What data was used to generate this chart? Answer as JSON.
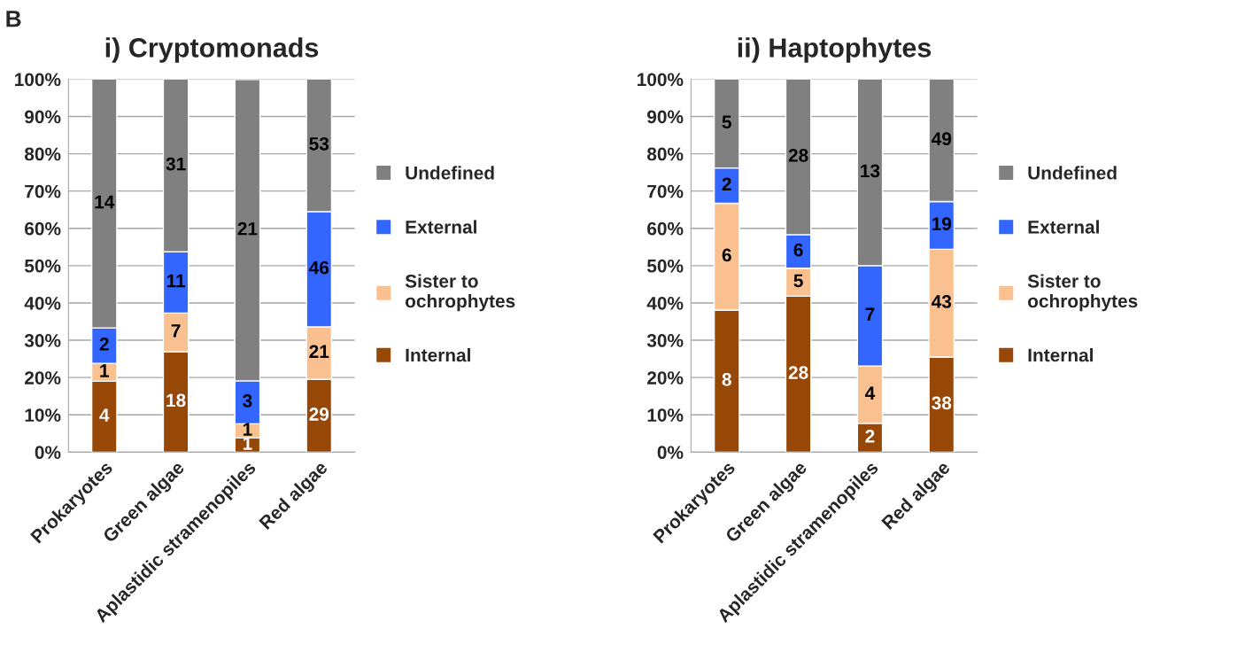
{
  "chart_data": [
    {
      "type": "bar",
      "stacked": true,
      "title": "i) Cryptomonads",
      "legend": "right",
      "grid": "y",
      "categories": [
        "Prokaryotes",
        "Green algae",
        "Aplastidic stramenopiles",
        "Red algae"
      ],
      "ylim": [
        0,
        100
      ],
      "yticks": [
        {
          "value": 0,
          "label": "0%"
        },
        {
          "value": 10,
          "label": "10%"
        },
        {
          "value": 20,
          "label": "20%"
        },
        {
          "value": 30,
          "label": "30%"
        },
        {
          "value": 40,
          "label": "40%"
        },
        {
          "value": 50,
          "label": "50%"
        },
        {
          "value": 60,
          "label": "60%"
        },
        {
          "value": 70,
          "label": "70%"
        },
        {
          "value": 80,
          "label": "80%"
        },
        {
          "value": 90,
          "label": "90%"
        },
        {
          "value": 100,
          "label": "100%"
        }
      ],
      "series": [
        {
          "name": "Internal",
          "color": "#974706",
          "values": [
            19.0,
            26.9,
            3.8,
            19.5
          ]
        },
        {
          "name": "Sister to\nochrophytes",
          "color": "#fac090",
          "values": [
            4.8,
            10.4,
            3.8,
            14.1
          ]
        },
        {
          "name": "External",
          "color": "#3366ff",
          "values": [
            9.5,
            16.4,
            11.5,
            30.9
          ]
        },
        {
          "name": "Undefined",
          "color": "#808080",
          "values": [
            66.7,
            46.3,
            80.8,
            35.5
          ]
        }
      ],
      "annotations": [
        "B",
        "4",
        "18",
        "1",
        "29",
        "1",
        "7",
        "1",
        "21",
        "2",
        "11",
        "3",
        "46",
        "14",
        "31",
        "21",
        "53"
      ]
    },
    {
      "type": "bar",
      "stacked": true,
      "title": "ii) Haptophytes",
      "legend": "right",
      "grid": "y",
      "categories": [
        "Prokaryotes",
        "Green algae",
        "Aplastidic stramenopiles",
        "Red algae"
      ],
      "ylim": [
        0,
        100
      ],
      "yticks": [
        {
          "value": 0,
          "label": "0%"
        },
        {
          "value": 10,
          "label": "10%"
        },
        {
          "value": 20,
          "label": "20%"
        },
        {
          "value": 30,
          "label": "30%"
        },
        {
          "value": 40,
          "label": "40%"
        },
        {
          "value": 50,
          "label": "50%"
        },
        {
          "value": 60,
          "label": "60%"
        },
        {
          "value": 70,
          "label": "70%"
        },
        {
          "value": 80,
          "label": "80%"
        },
        {
          "value": 90,
          "label": "90%"
        },
        {
          "value": 100,
          "label": "100%"
        }
      ],
      "series": [
        {
          "name": "Internal",
          "color": "#974706",
          "values": [
            38.1,
            41.8,
            7.7,
            25.5
          ]
        },
        {
          "name": "Sister to\nochrophytes",
          "color": "#fac090",
          "values": [
            28.6,
            7.5,
            15.4,
            28.9
          ]
        },
        {
          "name": "External",
          "color": "#3366ff",
          "values": [
            9.5,
            9.0,
            26.9,
            12.8
          ]
        },
        {
          "name": "Undefined",
          "color": "#808080",
          "values": [
            23.8,
            41.7,
            50.0,
            32.8
          ]
        }
      ],
      "annotations": [
        "8",
        "28",
        "2",
        "38",
        "6",
        "5",
        "4",
        "43",
        "2",
        "6",
        "7",
        "19",
        "5",
        "28",
        "13",
        "49"
      ]
    }
  ]
}
